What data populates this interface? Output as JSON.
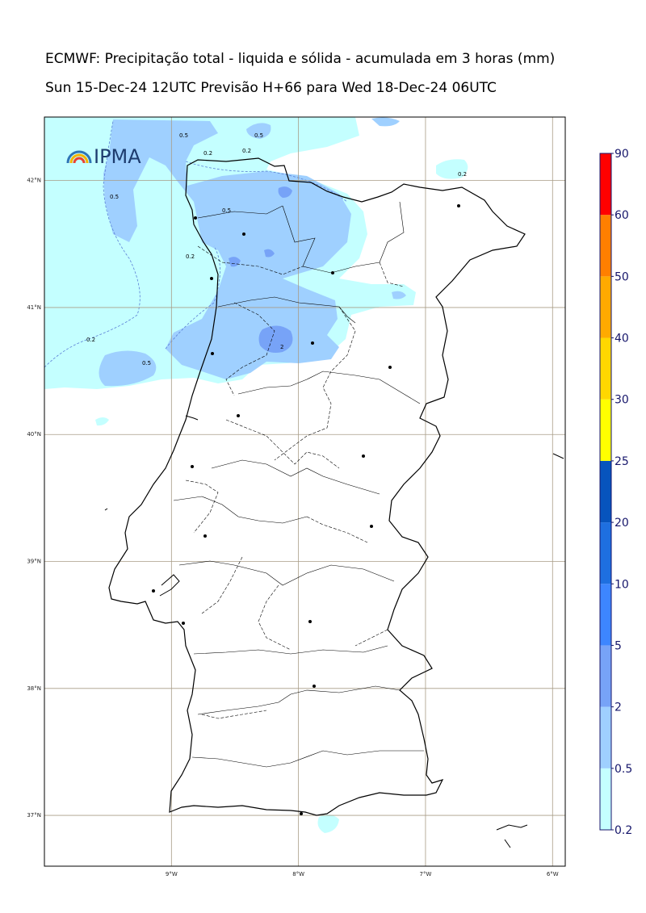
{
  "title_line1": "ECMWF: Precipitação total - liquida e sólida - acumulada em 3 horas (mm)",
  "title_line2": "Sun 15-Dec-24 12UTC Previsão H+66 para Wed 18-Dec-24 06UTC",
  "logo_text": "IPMA",
  "map": {
    "lon_range": [
      -10.0,
      -5.9
    ],
    "lat_range": [
      36.6,
      42.5
    ],
    "lon_ticks": [
      {
        "value": -9,
        "label": "9°W"
      },
      {
        "value": -8,
        "label": "8°W"
      },
      {
        "value": -7,
        "label": "7°W"
      },
      {
        "value": -6,
        "label": "6°W"
      }
    ],
    "lat_ticks": [
      {
        "value": 42,
        "label": "42°N"
      },
      {
        "value": 41,
        "label": "41°N"
      },
      {
        "value": 40,
        "label": "40°N"
      },
      {
        "value": 39,
        "label": "39°N"
      },
      {
        "value": 38,
        "label": "38°N"
      },
      {
        "value": 37,
        "label": "37°N"
      }
    ],
    "contour_labels": [
      "0.5",
      "0.2",
      "0.5",
      "0.2",
      "0.5",
      "0.2",
      "0.5",
      "0.2",
      "0.5",
      "2",
      "0.2"
    ]
  },
  "colorbar": {
    "levels": [
      "0.2",
      "0.5",
      "2",
      "5",
      "10",
      "20",
      "25",
      "30",
      "40",
      "50",
      "60",
      "90"
    ],
    "colors": [
      "#c4ffff",
      "#9fd0ff",
      "#77a3f7",
      "#3d86ff",
      "#1e6fe0",
      "#0754bd",
      "#ffff00",
      "#ffd700",
      "#ffaa00",
      "#ff7f00",
      "#ff0000",
      "#ff00aa"
    ]
  },
  "colors": {
    "shade_0_2": "#c4ffff",
    "shade_0_5": "#9fd0ff",
    "shade_2": "#77a3f7",
    "grid": "#a89c86",
    "coast": "#000000"
  }
}
